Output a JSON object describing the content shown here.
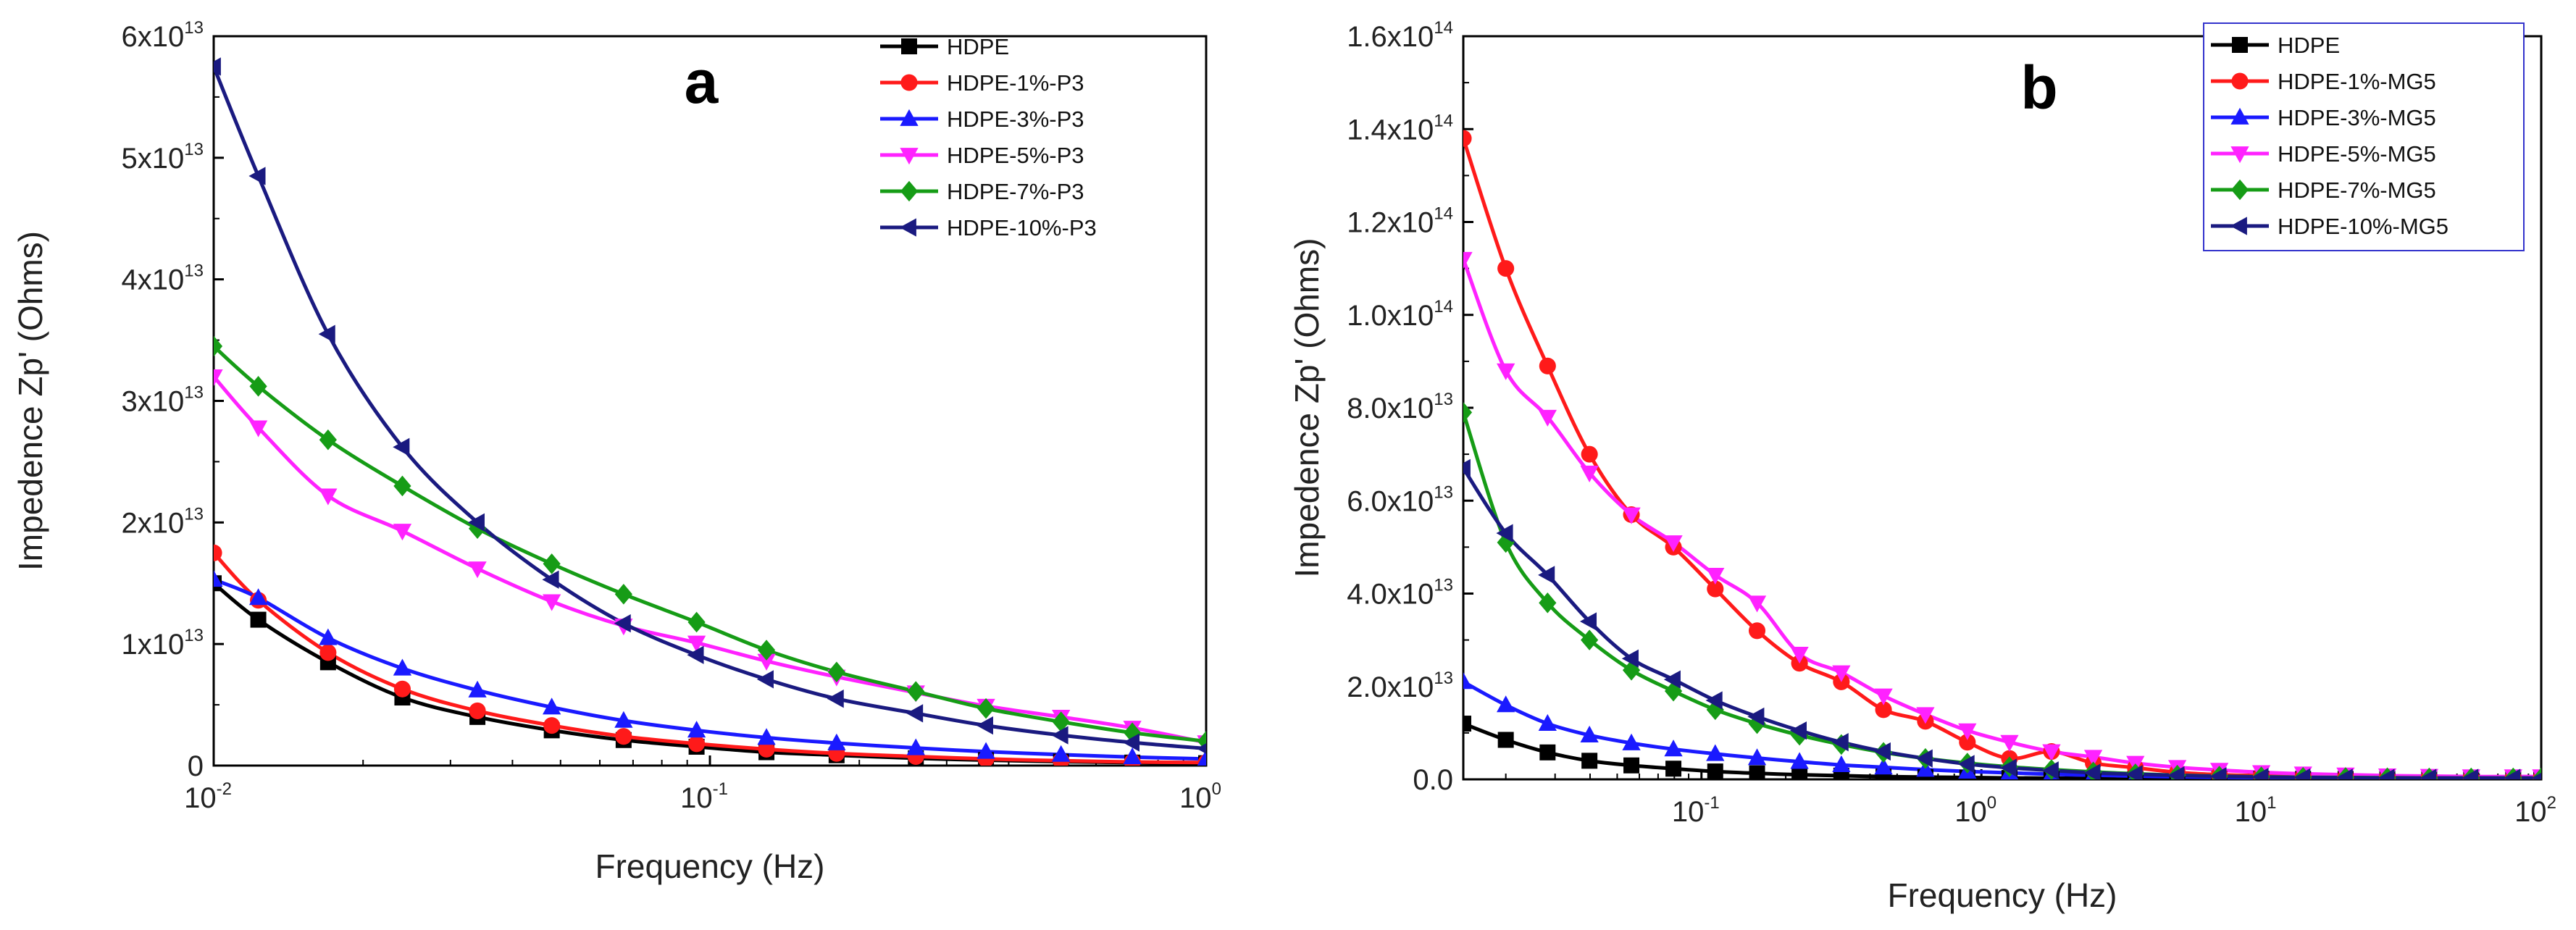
{
  "chart_data": [
    {
      "type": "line",
      "panel_label": "a",
      "xlabel": "Frequency (Hz)",
      "ylabel": "Impedence  Zp' (Ohms)",
      "x_scale": "log",
      "xlim": [
        0.01,
        1
      ],
      "ylim": [
        0,
        60000000000000.0
      ],
      "x_ticks": [
        {
          "value": 0.01,
          "base": "10",
          "exp": "-2"
        },
        {
          "value": 0.1,
          "base": "10",
          "exp": "-1"
        },
        {
          "value": 1,
          "base": "10",
          "exp": "0"
        }
      ],
      "y_ticks": [
        {
          "value": 0,
          "mant": "0",
          "exp": ""
        },
        {
          "value": 10000000000000.0,
          "mant": "1x10",
          "exp": "13"
        },
        {
          "value": 20000000000000.0,
          "mant": "2x10",
          "exp": "13"
        },
        {
          "value": 30000000000000.0,
          "mant": "3x10",
          "exp": "13"
        },
        {
          "value": 40000000000000.0,
          "mant": "4x10",
          "exp": "13"
        },
        {
          "value": 50000000000000.0,
          "mant": "5x10",
          "exp": "13"
        },
        {
          "value": 60000000000000.0,
          "mant": "6x10",
          "exp": "13"
        }
      ],
      "legend_position": "top-right",
      "x": [
        0.01,
        0.0123,
        0.017,
        0.024,
        0.034,
        0.048,
        0.067,
        0.094,
        0.13,
        0.18,
        0.26,
        0.36,
        0.51,
        0.71,
        1.0
      ],
      "series": [
        {
          "name": "HDPE",
          "color": "#000000",
          "marker": "square",
          "values": [
            15000000000000.0,
            12000000000000.0,
            8500000000000.0,
            5600000000000.0,
            4000000000000.0,
            2900000000000.0,
            2100000000000.0,
            1550000000000.0,
            1100000000000.0,
            850000000000.0,
            600000000000.0,
            450000000000.0,
            330000000000.0,
            250000000000.0,
            200000000000.0
          ]
        },
        {
          "name": "HDPE-1%-P3",
          "color": "#ff1a1a",
          "marker": "circle",
          "values": [
            17500000000000.0,
            13600000000000.0,
            9300000000000.0,
            6300000000000.0,
            4500000000000.0,
            3300000000000.0,
            2400000000000.0,
            1800000000000.0,
            1350000000000.0,
            1000000000000.0,
            750000000000.0,
            550000000000.0,
            400000000000.0,
            300000000000.0,
            250000000000.0
          ]
        },
        {
          "name": "HDPE-3%-P3",
          "color": "#1a1aff",
          "marker": "triangle-up",
          "values": [
            15300000000000.0,
            13800000000000.0,
            10500000000000.0,
            8000000000000.0,
            6200000000000.0,
            4800000000000.0,
            3700000000000.0,
            2900000000000.0,
            2300000000000.0,
            1850000000000.0,
            1450000000000.0,
            1150000000000.0,
            900000000000.0,
            700000000000.0,
            550000000000.0
          ]
        },
        {
          "name": "HDPE-5%-P3",
          "color": "#ff22ff",
          "marker": "triangle-down",
          "values": [
            32000000000000.0,
            27800000000000.0,
            22200000000000.0,
            19300000000000.0,
            16200000000000.0,
            13500000000000.0,
            11500000000000.0,
            10100000000000.0,
            8600000000000.0,
            7300000000000.0,
            6000000000000.0,
            4900000000000.0,
            4000000000000.0,
            3100000000000.0,
            1900000000000.0
          ]
        },
        {
          "name": "HDPE-7%-P3",
          "color": "#169c16",
          "marker": "diamond",
          "values": [
            34500000000000.0,
            31200000000000.0,
            26800000000000.0,
            23000000000000.0,
            19500000000000.0,
            16600000000000.0,
            14100000000000.0,
            11800000000000.0,
            9500000000000.0,
            7700000000000.0,
            6100000000000.0,
            4700000000000.0,
            3600000000000.0,
            2700000000000.0,
            2000000000000.0
          ]
        },
        {
          "name": "HDPE-10%-P3",
          "color": "#1a1a80",
          "marker": "triangle-left",
          "values": [
            57500000000000.0,
            48500000000000.0,
            35500000000000.0,
            26200000000000.0,
            20000000000000.0,
            15300000000000.0,
            11700000000000.0,
            9100000000000.0,
            7100000000000.0,
            5500000000000.0,
            4300000000000.0,
            3300000000000.0,
            2500000000000.0,
            1900000000000.0,
            1400000000000.0
          ]
        }
      ]
    },
    {
      "type": "line",
      "panel_label": "b",
      "xlabel": "Frequency (Hz)",
      "ylabel": "Impedence  Zp' (Ohms)",
      "x_scale": "log",
      "xlim": [
        0.0141,
        100
      ],
      "ylim": [
        0,
        160000000000000.0
      ],
      "x_ticks": [
        {
          "value": 0.1,
          "base": "10",
          "exp": "-1"
        },
        {
          "value": 1,
          "base": "10",
          "exp": "0"
        },
        {
          "value": 10,
          "base": "10",
          "exp": "1"
        },
        {
          "value": 100,
          "base": "10",
          "exp": "2"
        }
      ],
      "y_ticks": [
        {
          "value": 0,
          "mant": "0.0",
          "exp": ""
        },
        {
          "value": 20000000000000.0,
          "mant": "2.0x10",
          "exp": "13"
        },
        {
          "value": 40000000000000.0,
          "mant": "4.0x10",
          "exp": "13"
        },
        {
          "value": 60000000000000.0,
          "mant": "6.0x10",
          "exp": "13"
        },
        {
          "value": 80000000000000.0,
          "mant": "8.0x10",
          "exp": "13"
        },
        {
          "value": 100000000000000.0,
          "mant": "1.0x10",
          "exp": "14"
        },
        {
          "value": 120000000000000.0,
          "mant": "1.2x10",
          "exp": "14"
        },
        {
          "value": 140000000000000.0,
          "mant": "1.4x10",
          "exp": "14"
        },
        {
          "value": 160000000000000.0,
          "mant": "1.6x10",
          "exp": "14"
        }
      ],
      "legend_position": "top-right",
      "x": [
        0.0141,
        0.02,
        0.0282,
        0.0398,
        0.0562,
        0.0794,
        0.112,
        0.158,
        0.224,
        0.316,
        0.447,
        0.631,
        0.891,
        1.26,
        1.78,
        2.51,
        3.55,
        5.01,
        7.08,
        10,
        14.1,
        20,
        28.2,
        39.8,
        56.2,
        79.4,
        100
      ],
      "series": [
        {
          "name": "HDPE",
          "color": "#000000",
          "marker": "square",
          "values": [
            12000000000000.0,
            8500000000000.0,
            5800000000000.0,
            4000000000000.0,
            3000000000000.0,
            2300000000000.0,
            1700000000000.0,
            1300000000000.0,
            1000000000000.0,
            800000000000.0,
            600000000000.0,
            500000000000.0,
            400000000000.0,
            300000000000.0,
            250000000000.0,
            200000000000.0,
            180000000000.0,
            150000000000.0,
            130000000000.0,
            120000000000.0,
            110000000000.0,
            100000000000.0,
            100000000000.0,
            100000000000.0,
            100000000000.0,
            100000000000.0,
            100000000000.0
          ]
        },
        {
          "name": "HDPE-1%-MG5",
          "color": "#ff1a1a",
          "marker": "circle",
          "values": [
            138000000000000.0,
            110000000000000.0,
            89000000000000.0,
            70000000000000.0,
            57000000000000.0,
            50000000000000.0,
            41000000000000.0,
            32000000000000.0,
            25000000000000.0,
            21000000000000.0,
            15000000000000.0,
            12500000000000.0,
            8000000000000.0,
            4500000000000.0,
            6000000000000.0,
            3500000000000.0,
            2500000000000.0,
            1500000000000.0,
            1000000000000.0,
            800000000000.0,
            600000000000.0,
            500000000000.0,
            400000000000.0,
            350000000000.0,
            300000000000.0,
            300000000000.0,
            300000000000.0
          ]
        },
        {
          "name": "HDPE-3%-MG5",
          "color": "#1a1aff",
          "marker": "triangle-up",
          "values": [
            21000000000000.0,
            16000000000000.0,
            12000000000000.0,
            9500000000000.0,
            7800000000000.0,
            6500000000000.0,
            5500000000000.0,
            4600000000000.0,
            3800000000000.0,
            3100000000000.0,
            2600000000000.0,
            2100000000000.0,
            1700000000000.0,
            1400000000000.0,
            1100000000000.0,
            900000000000.0,
            700000000000.0,
            550000000000.0,
            450000000000.0,
            350000000000.0,
            300000000000.0,
            250000000000.0,
            200000000000.0,
            200000000000.0,
            200000000000.0,
            200000000000.0,
            200000000000.0
          ]
        },
        {
          "name": "HDPE-5%-MG5",
          "color": "#ff22ff",
          "marker": "triangle-down",
          "values": [
            112000000000000.0,
            88000000000000.0,
            78000000000000.0,
            66000000000000.0,
            57000000000000.0,
            51000000000000.0,
            44000000000000.0,
            38000000000000.0,
            27000000000000.0,
            23000000000000.0,
            18000000000000.0,
            14000000000000.0,
            10500000000000.0,
            8000000000000.0,
            6000000000000.0,
            4800000000000.0,
            3500000000000.0,
            2600000000000.0,
            2000000000000.0,
            1500000000000.0,
            1200000000000.0,
            1000000000000.0,
            800000000000.0,
            700000000000.0,
            600000000000.0,
            600000000000.0,
            600000000000.0
          ]
        },
        {
          "name": "HDPE-7%-MG5",
          "color": "#169c16",
          "marker": "diamond",
          "values": [
            79000000000000.0,
            51000000000000.0,
            38000000000000.0,
            30000000000000.0,
            23500000000000.0,
            19000000000000.0,
            15000000000000.0,
            12000000000000.0,
            9500000000000.0,
            7500000000000.0,
            5800000000000.0,
            4500000000000.0,
            3500000000000.0,
            2700000000000.0,
            2100000000000.0,
            1600000000000.0,
            1200000000000.0,
            900000000000.0,
            700000000000.0,
            550000000000.0,
            450000000000.0,
            400000000000.0,
            350000000000.0,
            300000000000.0,
            300000000000.0,
            300000000000.0,
            300000000000.0
          ]
        },
        {
          "name": "HDPE-10%-MG5",
          "color": "#1a1a80",
          "marker": "triangle-left",
          "values": [
            67000000000000.0,
            53000000000000.0,
            44000000000000.0,
            34000000000000.0,
            26000000000000.0,
            21500000000000.0,
            17000000000000.0,
            13500000000000.0,
            10500000000000.0,
            8000000000000.0,
            6000000000000.0,
            4500000000000.0,
            3300000000000.0,
            2500000000000.0,
            1900000000000.0,
            1400000000000.0,
            1100000000000.0,
            850000000000.0,
            650000000000.0,
            500000000000.0,
            400000000000.0,
            350000000000.0,
            300000000000.0,
            300000000000.0,
            300000000000.0,
            300000000000.0,
            300000000000.0
          ]
        }
      ]
    }
  ]
}
